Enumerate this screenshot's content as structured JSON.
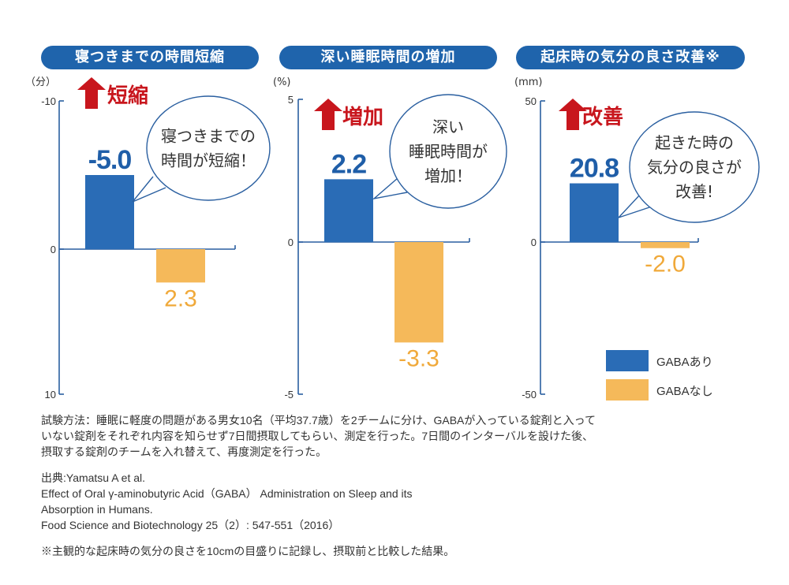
{
  "chart_data": [
    {
      "type": "bar",
      "title": "寝つきまでの時間短縮",
      "unit": "（分）",
      "inverted_axis": true,
      "ylim": [
        -10,
        10
      ],
      "yticks": [
        "-10",
        "0",
        "10"
      ],
      "series": [
        {
          "name": "GABAあり",
          "values": [
            -5.0
          ],
          "label": "-5.0"
        },
        {
          "name": "GABAなし",
          "values": [
            2.3
          ],
          "label": "2.3"
        }
      ],
      "badge": "短縮",
      "bubble": [
        "寝つきまでの",
        "時間が短縮！"
      ]
    },
    {
      "type": "bar",
      "title": "深い睡眠時間の増加",
      "unit": "(%)",
      "inverted_axis": false,
      "ylim": [
        -5,
        5
      ],
      "yticks": [
        "5",
        "0",
        "-5"
      ],
      "series": [
        {
          "name": "GABAあり",
          "values": [
            2.2
          ],
          "label": "2.2"
        },
        {
          "name": "GABAなし",
          "values": [
            -3.3
          ],
          "label": "-3.3"
        }
      ],
      "badge": "増加",
      "bubble": [
        "深い",
        "睡眠時間が",
        "増加！"
      ]
    },
    {
      "type": "bar",
      "title": "起床時の気分の良さ改善※",
      "unit": "(mm)",
      "inverted_axis": false,
      "ylim": [
        -50,
        50
      ],
      "yticks": [
        "50",
        "0",
        "-50"
      ],
      "series": [
        {
          "name": "GABAあり",
          "values": [
            20.8
          ],
          "label": "20.8"
        },
        {
          "name": "GABAなし",
          "values": [
            -2.0
          ],
          "label": "-2.0"
        }
      ],
      "badge": "改善",
      "bubble": [
        "起きた時の",
        "気分の良さが",
        "改善!"
      ]
    }
  ],
  "legend": [
    {
      "label": "GABAあり",
      "color": "#2a6cb6"
    },
    {
      "label": "GABAなし",
      "color": "#f5b95a"
    }
  ],
  "colors": {
    "with": "#2a6cb6",
    "without": "#f5b95a",
    "arrow": "#c8161d",
    "title_bg": "#1f64ac",
    "value_with": "#1f5ea8",
    "value_without": "#f0a93a"
  },
  "notes": {
    "method": [
      "試験方法：睡眠に軽度の問題がある男女10名（平均37.7歳）を2チームに分け、GABAが入っている錠剤と入って",
      "いない錠剤をそれぞれ内容を知らせず7日間摂取してもらい、測定を行った。7日間のインターバルを設けた後、",
      "摂取する錠剤のチームを入れ替えて、再度測定を行った。"
    ],
    "source": [
      "出典:Yamatsu A et al.",
      "Effect of Oral γ-aminobutyric Acid（GABA） Administration on Sleep and its",
      "Absorption in Humans.",
      "Food Science and Biotechnology 25（2）: 547-551（2016）"
    ],
    "footnote": "※主観的な起床時の気分の良さを10cmの目盛りに記録し、摂取前と比較した結果。"
  }
}
